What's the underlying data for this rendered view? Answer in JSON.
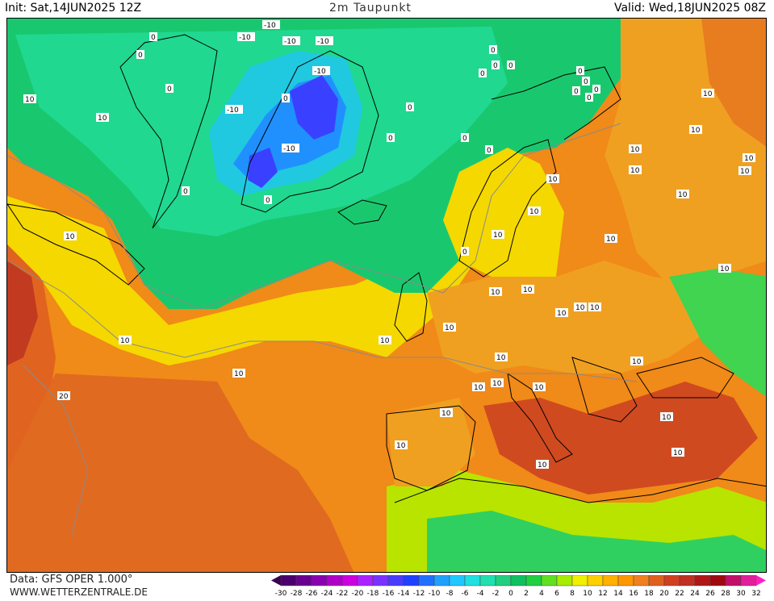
{
  "header": {
    "init": "Init: Sat,14JUN2025 12Z",
    "title": "2m Taupunkt",
    "valid": "Valid: Wed,18JUN2025 08Z"
  },
  "footer": {
    "data_source": "Data: GFS OPER 1.000°",
    "website": "WWW.WETTERZENTRALE.DE"
  },
  "legend": {
    "ticks": [
      "-30",
      "-28",
      "-26",
      "-24",
      "-22",
      "-20",
      "-18",
      "-16",
      "-14",
      "-12",
      "-10",
      "-8",
      "-6",
      "-4",
      "-2",
      "0",
      "2",
      "4",
      "6",
      "8",
      "10",
      "12",
      "14",
      "16",
      "18",
      "20",
      "22",
      "24",
      "26",
      "28",
      "30",
      "32"
    ],
    "colors": [
      "#4b006e",
      "#6a0090",
      "#8a00b0",
      "#b000c8",
      "#cc00e0",
      "#aa22ff",
      "#7a33ff",
      "#4a3cff",
      "#2040ff",
      "#2070ff",
      "#20a0ff",
      "#20c8ff",
      "#20e0e0",
      "#20e0b0",
      "#20d080",
      "#10c060",
      "#20d040",
      "#60e020",
      "#a8ec00",
      "#f0f000",
      "#ffd000",
      "#ffb000",
      "#ff9800",
      "#f08020",
      "#e06020",
      "#d04020",
      "#c03020",
      "#b01818",
      "#a00810",
      "#c0106a",
      "#e0209a"
    ]
  },
  "contour_labels": [
    {
      "text": "-10"
    },
    {
      "text": "-10"
    },
    {
      "text": "-10"
    },
    {
      "text": "-10"
    },
    {
      "text": "-10"
    },
    {
      "text": "-10"
    },
    {
      "text": "-10"
    },
    {
      "text": "0"
    },
    {
      "text": "0"
    },
    {
      "text": "0"
    },
    {
      "text": "0"
    },
    {
      "text": "0"
    },
    {
      "text": "0"
    },
    {
      "text": "0"
    },
    {
      "text": "0"
    },
    {
      "text": "0"
    },
    {
      "text": "0"
    },
    {
      "text": "0"
    },
    {
      "text": "0"
    },
    {
      "text": "0"
    },
    {
      "text": "0"
    },
    {
      "text": "0"
    },
    {
      "text": "0"
    },
    {
      "text": "0"
    },
    {
      "text": "0"
    },
    {
      "text": "0"
    },
    {
      "text": "0"
    },
    {
      "text": "10"
    },
    {
      "text": "10"
    },
    {
      "text": "10"
    },
    {
      "text": "10"
    },
    {
      "text": "10"
    },
    {
      "text": "10"
    },
    {
      "text": "10"
    },
    {
      "text": "10"
    },
    {
      "text": "10"
    },
    {
      "text": "10"
    },
    {
      "text": "10"
    },
    {
      "text": "10"
    },
    {
      "text": "10"
    },
    {
      "text": "10"
    },
    {
      "text": "10"
    },
    {
      "text": "10"
    },
    {
      "text": "10"
    },
    {
      "text": "10"
    },
    {
      "text": "10"
    },
    {
      "text": "10"
    },
    {
      "text": "10"
    },
    {
      "text": "10"
    },
    {
      "text": "10"
    },
    {
      "text": "10"
    },
    {
      "text": "10"
    },
    {
      "text": "10"
    },
    {
      "text": "10"
    },
    {
      "text": "10"
    },
    {
      "text": "10"
    },
    {
      "text": "10"
    },
    {
      "text": "10"
    },
    {
      "text": "10"
    },
    {
      "text": "10"
    },
    {
      "text": "10"
    },
    {
      "text": "20"
    }
  ]
}
